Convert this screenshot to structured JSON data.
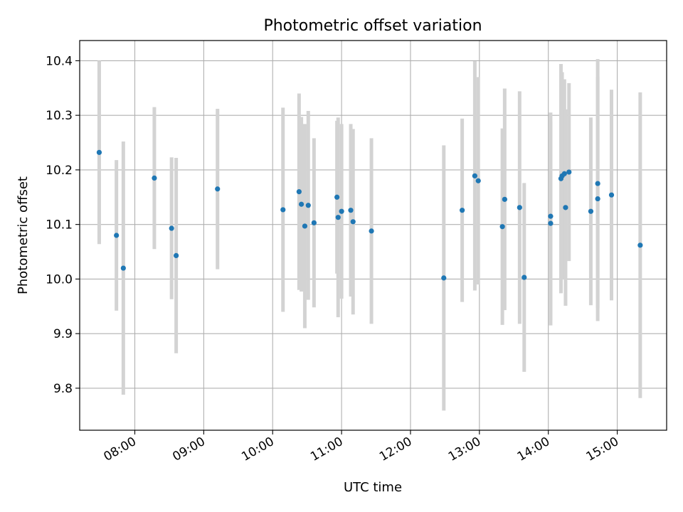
{
  "chart_data": {
    "type": "scatter",
    "title": "Photometric offset variation",
    "xlabel": "UTC time",
    "ylabel": "Photometric offset",
    "xlim": [
      "07:12",
      "15:43"
    ],
    "ylim": [
      9.723,
      10.437
    ],
    "grid": true,
    "x_ticks": [
      "08:00",
      "09:00",
      "10:00",
      "11:00",
      "12:00",
      "13:00",
      "14:00",
      "15:00"
    ],
    "y_ticks": [
      9.8,
      9.9,
      10.0,
      10.1,
      10.2,
      10.3,
      10.4
    ],
    "y_tick_labels": [
      "9.8",
      "9.9",
      "10.0",
      "10.1",
      "10.2",
      "10.3",
      "10.4"
    ],
    "colors": {
      "marker": "#1f77b4",
      "errorbar": "#d3d3d3",
      "grid": "#b0b0b0"
    },
    "series": [
      {
        "points": [
          {
            "time": "07:29",
            "offset": 10.232,
            "err": 0.168
          },
          {
            "time": "07:44",
            "offset": 10.08,
            "err": 0.138
          },
          {
            "time": "07:50",
            "offset": 10.02,
            "err": 0.232
          },
          {
            "time": "08:17",
            "offset": 10.185,
            "err": 0.13
          },
          {
            "time": "08:32",
            "offset": 10.093,
            "err": 0.13
          },
          {
            "time": "08:36",
            "offset": 10.043,
            "err": 0.179
          },
          {
            "time": "09:12",
            "offset": 10.165,
            "err": 0.147
          },
          {
            "time": "10:09",
            "offset": 10.127,
            "err": 0.187
          },
          {
            "time": "10:23",
            "offset": 10.16,
            "err": 0.18
          },
          {
            "time": "10:25",
            "offset": 10.137,
            "err": 0.16
          },
          {
            "time": "10:28",
            "offset": 10.097,
            "err": 0.187
          },
          {
            "time": "10:31",
            "offset": 10.135,
            "err": 0.173
          },
          {
            "time": "10:36",
            "offset": 10.103,
            "err": 0.155
          },
          {
            "time": "10:56",
            "offset": 10.15,
            "err": 0.14
          },
          {
            "time": "10:57",
            "offset": 10.113,
            "err": 0.183
          },
          {
            "time": "11:00",
            "offset": 10.124,
            "err": 0.16
          },
          {
            "time": "11:08",
            "offset": 10.126,
            "err": 0.158
          },
          {
            "time": "11:10",
            "offset": 10.105,
            "err": 0.17
          },
          {
            "time": "11:26",
            "offset": 10.088,
            "err": 0.17
          },
          {
            "time": "12:29",
            "offset": 10.002,
            "err": 0.243
          },
          {
            "time": "12:45",
            "offset": 10.126,
            "err": 0.168
          },
          {
            "time": "12:56",
            "offset": 10.189,
            "err": 0.21
          },
          {
            "time": "12:59",
            "offset": 10.18,
            "err": 0.19
          },
          {
            "time": "13:20",
            "offset": 10.096,
            "err": 0.18
          },
          {
            "time": "13:22",
            "offset": 10.146,
            "err": 0.203
          },
          {
            "time": "13:35",
            "offset": 10.131,
            "err": 0.213
          },
          {
            "time": "13:39",
            "offset": 10.003,
            "err": 0.173
          },
          {
            "time": "14:02",
            "offset": 10.115,
            "err": 0.19
          },
          {
            "time": "14:02",
            "offset": 10.102,
            "err": 0.187
          },
          {
            "time": "14:11",
            "offset": 10.184,
            "err": 0.21
          },
          {
            "time": "14:12",
            "offset": 10.189,
            "err": 0.19
          },
          {
            "time": "14:14",
            "offset": 10.193,
            "err": 0.173
          },
          {
            "time": "14:15",
            "offset": 10.131,
            "err": 0.18
          },
          {
            "time": "14:18",
            "offset": 10.196,
            "err": 0.163
          },
          {
            "time": "14:37",
            "offset": 10.124,
            "err": 0.172
          },
          {
            "time": "14:43",
            "offset": 10.175,
            "err": 0.228
          },
          {
            "time": "14:43",
            "offset": 10.147,
            "err": 0.224
          },
          {
            "time": "14:55",
            "offset": 10.154,
            "err": 0.193
          },
          {
            "time": "15:20",
            "offset": 10.062,
            "err": 0.28
          }
        ]
      }
    ]
  }
}
